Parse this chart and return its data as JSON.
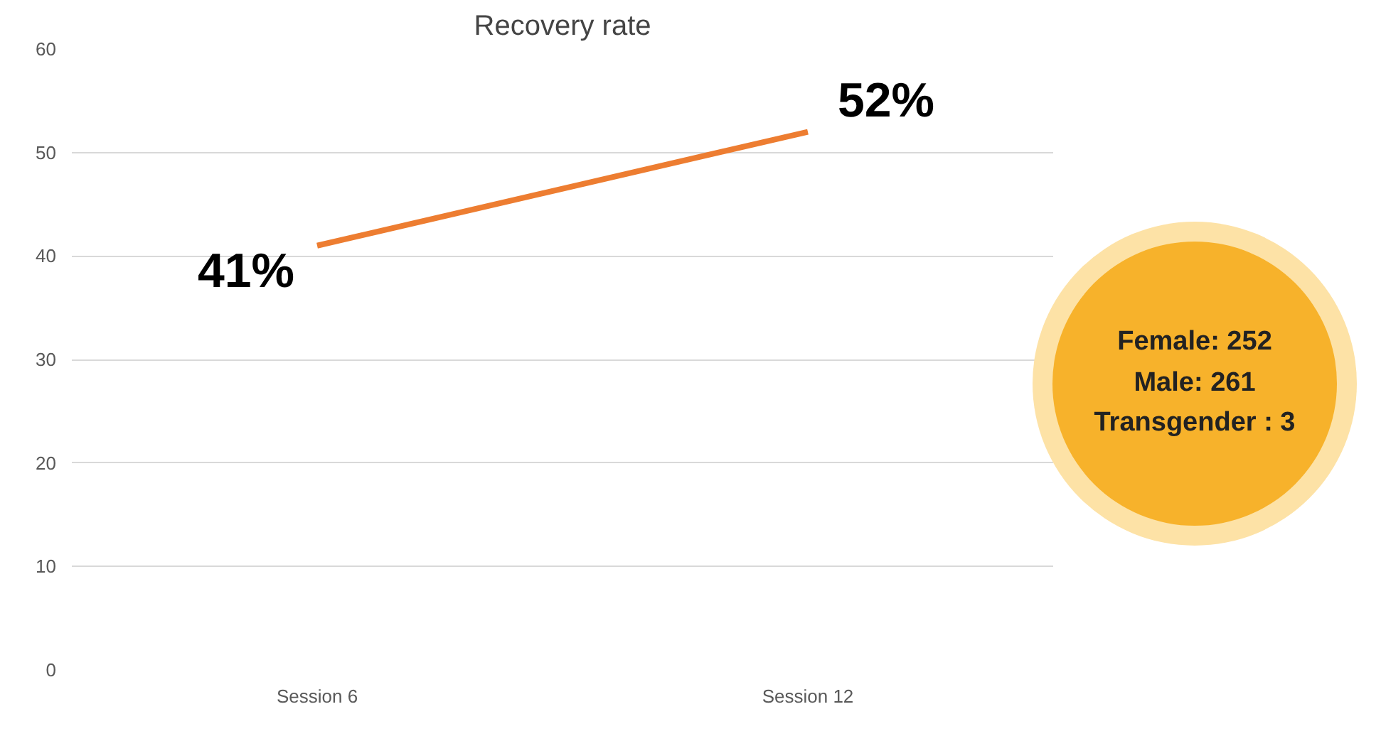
{
  "chart_data": {
    "type": "line",
    "title": "Recovery rate",
    "categories": [
      "Session 6",
      "Session 12"
    ],
    "series": [
      {
        "color": "#ed7d31",
        "values": [
          41,
          52
        ],
        "value_labels": [
          "41%",
          "52%"
        ]
      }
    ],
    "ylim": [
      0,
      60
    ],
    "yticks": [
      0,
      10,
      20,
      30,
      40,
      50,
      60
    ],
    "grid": "y",
    "marker": "none",
    "line_style": "solid",
    "annotations": [
      "Female: 252",
      "Male: 261",
      "Transgender : 3"
    ]
  }
}
